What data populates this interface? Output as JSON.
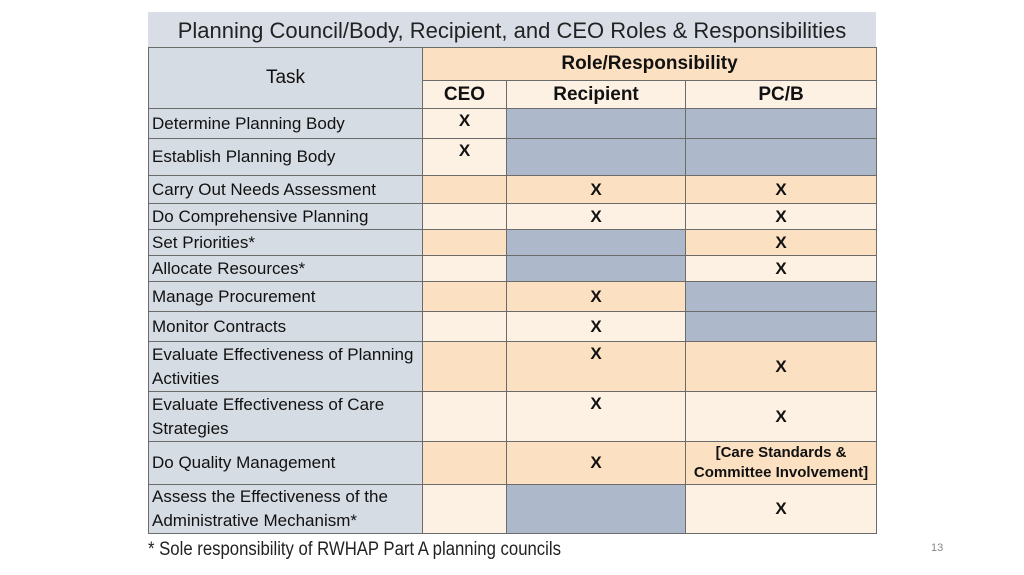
{
  "title": "Planning Council/Body, Recipient, and CEO Roles & Responsibilities",
  "table": {
    "header": {
      "task": "Task",
      "group": "Role/Responsibility",
      "columns": [
        "CEO",
        "Recipient",
        "PC/B"
      ]
    },
    "rows": [
      [
        "Determine Planning Body",
        "X",
        null,
        null
      ],
      [
        "Establish Planning Body",
        "X",
        null,
        null
      ],
      [
        "Carry Out Needs Assessment",
        null,
        "X",
        "X"
      ],
      [
        "Do Comprehensive Planning",
        null,
        "X",
        "X"
      ],
      [
        "Set Priorities*",
        null,
        null,
        "X"
      ],
      [
        "Allocate Resources*",
        null,
        null,
        "X"
      ],
      [
        "Manage Procurement",
        null,
        "X",
        null
      ],
      [
        "Monitor Contracts",
        null,
        "X",
        null
      ],
      [
        "Evaluate Effectiveness of Planning Activities",
        null,
        "X",
        "X"
      ],
      [
        "Evaluate Effectiveness of Care Strategies",
        null,
        "X",
        "X"
      ],
      [
        "Do Quality Management",
        null,
        "X",
        "[Care Standards & Committee Involvement]"
      ],
      [
        "Assess the Effectiveness of the Administrative Mechanism*",
        null,
        null,
        "X"
      ]
    ]
  },
  "footnote": "* Sole responsibility of RWHAP Part A planning councils",
  "page_number": "13"
}
